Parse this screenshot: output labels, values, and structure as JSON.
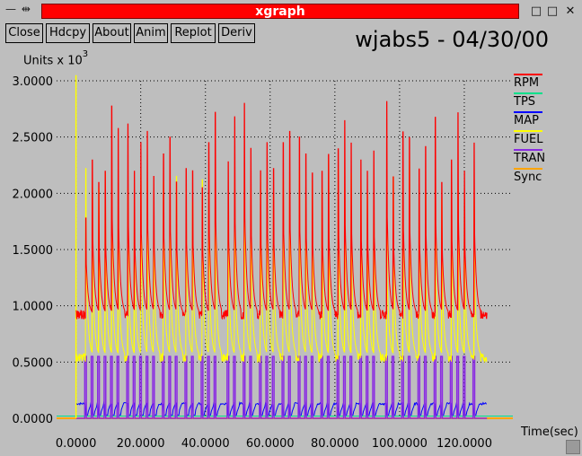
{
  "window": {
    "left_controls": "—  ⇹",
    "title": "xgraph",
    "minimize": "□",
    "close": "✕"
  },
  "toolbar": {
    "buttons": [
      "Close",
      "Hdcpy",
      "About",
      "Anim",
      "Replot",
      "Deriv"
    ]
  },
  "plot": {
    "title": "wjabs5 - 04/30/00",
    "units_label": "Units x 10",
    "units_exp": "3",
    "xlabel": "Time(sec)"
  },
  "colors": {
    "background": "#bebebe",
    "grid": "#000000",
    "title_bar": "#ff0000"
  },
  "chart_data": {
    "type": "line",
    "title": "wjabs5 - 04/30/00",
    "xlabel": "Time(sec)",
    "ylabel": "Units x 10^3",
    "xlim": [
      -6,
      135
    ],
    "ylim": [
      0,
      3
    ],
    "grid": true,
    "legend_placement": "right",
    "x_ticks": [
      "0.0000",
      "20.0000",
      "40.0000",
      "60.0000",
      "80.0000",
      "100.0000",
      "120.0000"
    ],
    "y_ticks": [
      "0.0000",
      "0.5000",
      "1.0000",
      "1.5000",
      "2.0000",
      "2.5000",
      "3.0000"
    ],
    "legend": [
      {
        "name": "RPM",
        "color": "#ff0000"
      },
      {
        "name": "TPS",
        "color": "#00e08a"
      },
      {
        "name": "MAP",
        "color": "#0000ff"
      },
      {
        "name": "FUEL",
        "color": "#ffff00"
      },
      {
        "name": "TRAN",
        "color": "#8a2be2"
      },
      {
        "name": "Sync",
        "color": "#ffa500"
      }
    ],
    "series": [
      {
        "name": "RPM",
        "color": "#ff0000",
        "baseline": 0.92,
        "x_range": [
          0,
          127
        ],
        "peaks": [
          [
            3,
            1.78
          ],
          [
            5,
            2.3
          ],
          [
            7,
            2.1
          ],
          [
            9,
            2.2
          ],
          [
            11,
            2.78
          ],
          [
            13,
            2.58
          ],
          [
            16,
            2.62
          ],
          [
            18,
            2.2
          ],
          [
            20,
            2.45
          ],
          [
            22,
            2.55
          ],
          [
            24,
            2.15
          ],
          [
            27,
            2.35
          ],
          [
            29,
            2.5
          ],
          [
            31,
            2.1
          ],
          [
            34,
            2.22
          ],
          [
            36,
            2.2
          ],
          [
            39,
            2.05
          ],
          [
            41,
            2.45
          ],
          [
            43,
            2.72
          ],
          [
            47,
            2.28
          ],
          [
            49,
            2.68
          ],
          [
            52,
            2.8
          ],
          [
            54,
            2.4
          ],
          [
            57,
            2.2
          ],
          [
            59,
            2.45
          ],
          [
            61,
            2.22
          ],
          [
            64,
            2.45
          ],
          [
            66,
            2.55
          ],
          [
            69,
            2.5
          ],
          [
            71,
            2.35
          ],
          [
            73,
            2.18
          ],
          [
            76,
            2.2
          ],
          [
            78,
            2.35
          ],
          [
            81,
            2.4
          ],
          [
            83,
            2.65
          ],
          [
            85,
            2.45
          ],
          [
            88,
            2.3
          ],
          [
            90,
            2.2
          ],
          [
            92,
            2.38
          ],
          [
            96,
            2.82
          ],
          [
            98,
            2.15
          ],
          [
            101,
            2.55
          ],
          [
            103,
            2.5
          ],
          [
            106,
            2.22
          ],
          [
            108,
            2.42
          ],
          [
            111,
            2.68
          ],
          [
            113,
            2.1
          ],
          [
            116,
            2.3
          ],
          [
            118,
            2.72
          ],
          [
            120,
            2.2
          ],
          [
            123,
            2.45
          ]
        ]
      },
      {
        "name": "FUEL",
        "color": "#ffff00",
        "baseline": 0.54,
        "x_range": [
          0,
          127
        ],
        "peaks": [
          [
            3,
            2.22
          ],
          [
            5,
            2.1
          ],
          [
            7,
            2.05
          ],
          [
            9,
            2.18
          ],
          [
            11,
            2.0
          ],
          [
            13,
            2.12
          ],
          [
            16,
            2.05
          ],
          [
            18,
            1.95
          ],
          [
            20,
            2.2
          ],
          [
            22,
            2.1
          ],
          [
            24,
            1.9
          ],
          [
            27,
            2.1
          ],
          [
            29,
            2.02
          ],
          [
            31,
            2.15
          ],
          [
            34,
            2.05
          ],
          [
            36,
            1.92
          ],
          [
            39,
            2.12
          ],
          [
            41,
            2.0
          ],
          [
            43,
            2.1
          ],
          [
            47,
            1.95
          ],
          [
            49,
            2.12
          ],
          [
            52,
            2.3
          ],
          [
            54,
            2.05
          ],
          [
            57,
            2.15
          ],
          [
            59,
            2.05
          ],
          [
            61,
            1.98
          ],
          [
            64,
            2.12
          ],
          [
            66,
            2.15
          ],
          [
            69,
            2.2
          ],
          [
            71,
            1.95
          ],
          [
            73,
            2.1
          ],
          [
            76,
            2.05
          ],
          [
            78,
            2.3
          ],
          [
            81,
            2.22
          ],
          [
            83,
            2.05
          ],
          [
            85,
            2.18
          ],
          [
            88,
            2.1
          ],
          [
            90,
            2.0
          ],
          [
            92,
            2.2
          ],
          [
            96,
            1.95
          ],
          [
            98,
            2.15
          ],
          [
            101,
            2.25
          ],
          [
            103,
            2.3
          ],
          [
            106,
            2.05
          ],
          [
            108,
            2.0
          ],
          [
            111,
            2.1
          ],
          [
            113,
            1.95
          ],
          [
            116,
            2.15
          ],
          [
            118,
            2.05
          ],
          [
            120,
            2.0
          ],
          [
            123,
            1.95
          ]
        ],
        "spike": [
          0,
          3.05
        ]
      },
      {
        "name": "TRAN",
        "color": "#8a2be2",
        "baseline": 0.0,
        "x_range": [
          0,
          127
        ],
        "pulse_level": 0.55
      },
      {
        "name": "MAP",
        "color": "#0000ff",
        "baseline": 0.13,
        "x_range": [
          0,
          127
        ]
      },
      {
        "name": "TPS",
        "color": "#00e08a",
        "baseline": 0.02,
        "x_range": [
          -6,
          135
        ]
      },
      {
        "name": "Sync",
        "color": "#ffa500",
        "baseline": 0.0,
        "x_range": [
          -6,
          135
        ]
      }
    ]
  }
}
